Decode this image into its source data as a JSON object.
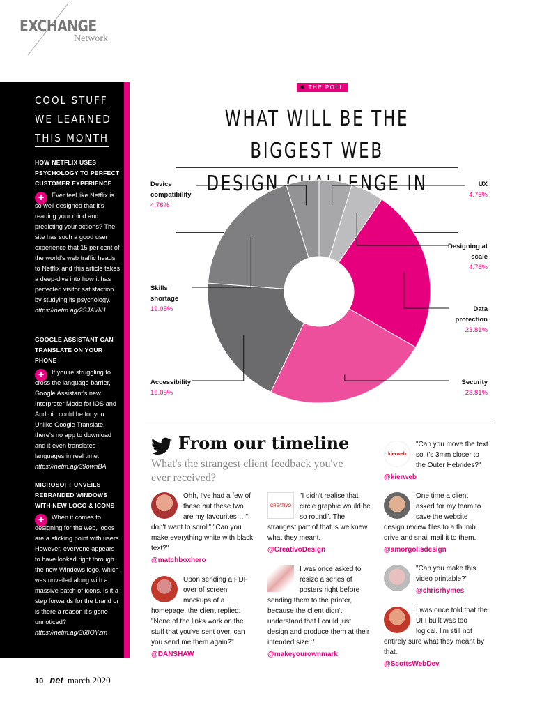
{
  "header": {
    "logo_main": "EXCHANGE",
    "logo_sub": "Network"
  },
  "sidebar": {
    "title_lines": [
      "COOL STUFF",
      "WE LEARNED",
      "THIS MONTH"
    ],
    "items": [
      {
        "heading": "HOW NETFLIX USES PSYCHOLOGY TO PERFECT CUSTOMER EXPERIENCE",
        "body": "Ever feel like Netflix is so well designed that it's reading your mind and predicting your actions? The site has such a good user experience that 15 per cent of the world's web traffic heads to Netflix and this article takes a deep-dive into how it has perfected visitor satisfaction by studying its psychology.",
        "link": "https://netm.ag/2SJAVN1"
      },
      {
        "heading": "GOOGLE ASSISTANT CAN TRANSLATE ON YOUR PHONE",
        "body": "If you're struggling to cross the language barrier, Google Assistant's new Interpreter Mode for iOS and Android could be for you. Unlike Google Translate, there's no app to download and it even translates languages in real time.",
        "link": "https://netm.ag/39ownBA"
      },
      {
        "heading": "MICROSOFT UNVEILS REBRANDED WINDOWS WITH NEW LOGO & ICONS",
        "body": "When it comes to designing for the web, logos are a sticking point with users. However, everyone appears to have looked right through the new Windows logo, which was unveiled along with a massive batch of icons. Is it a step forwards for the brand or is there a reason it's gone unnoticed?",
        "link": "https://netm.ag/368OYzm"
      }
    ]
  },
  "poll": {
    "tag": "THE POLL",
    "title_lines": [
      "WHAT WILL BE THE BIGGEST WEB",
      "DESIGN CHALLENGE IN 2020?"
    ]
  },
  "chart_data": {
    "type": "pie",
    "donut": true,
    "title": "WHAT WILL BE THE BIGGEST WEB DESIGN CHALLENGE IN 2020?",
    "slices": [
      {
        "label": "UX",
        "value": 4.76,
        "display": "4.76%",
        "color": "#a8a8ab"
      },
      {
        "label": "Designing at scale",
        "value": 4.76,
        "display": "4.76%",
        "color": "#bdbdbf"
      },
      {
        "label": "Data protection",
        "value": 23.81,
        "display": "23.81%",
        "color": "#e6007e"
      },
      {
        "label": "Security",
        "value": 23.81,
        "display": "23.81%",
        "color": "#ee4f9d"
      },
      {
        "label": "Accessibility",
        "value": 19.05,
        "display": "19.05%",
        "color": "#6b6b6e"
      },
      {
        "label": "Skills shortage",
        "value": 19.05,
        "display": "19.05%",
        "color": "#7f7f82"
      },
      {
        "label": "Device compatibility",
        "value": 4.76,
        "display": "4.76%",
        "color": "#939396"
      }
    ]
  },
  "timeline": {
    "title": "From our timeline",
    "subtitle": "What's the strangest client feedback you've ever received?",
    "tweets": [
      {
        "text": "Ohh, I've had a few of these but these two are my favourites… \"I don't want to scroll\" \"Can you make everything white with black text?\"",
        "handle": "@matchboxhero"
      },
      {
        "text": "Upon sending a PDF over of screen mockups of a homepage, the client replied: \"None of the links work on the stuff that you've sent over, can you send me them again?\"",
        "handle": "@DANSHAW"
      },
      {
        "text": "\"I didn't realise that circle graphic would be so round\". The strangest part of that is we knew what they meant.",
        "handle": "@CreativoDesign",
        "avatar_text": "CREATIVO"
      },
      {
        "text": "I was once asked to resize a series of posters right before sending them to the printer, because the client didn't understand that I could just design and produce them at their intended size :/",
        "handle": "@makeyourownmark"
      },
      {
        "text": "\"Can you move the text so it's 3mm closer to the Outer Hebrides?\"",
        "handle": "@kierweb",
        "avatar_text": "kierweb"
      },
      {
        "text": "One time a client asked for my team to save the website design review files to a thumb drive and snail mail it to them.",
        "handle": "@amorgolisdesign"
      },
      {
        "text": "\"Can you make this video printable?\"",
        "handle": "@chrisrhymes"
      },
      {
        "text": "I was once told that the UI I built was too logical. I'm still not entirely sure what they meant by that.",
        "handle": "@ScottsWebDev"
      }
    ]
  },
  "footer": {
    "page": "10",
    "mag": "net",
    "date": "march 2020"
  }
}
